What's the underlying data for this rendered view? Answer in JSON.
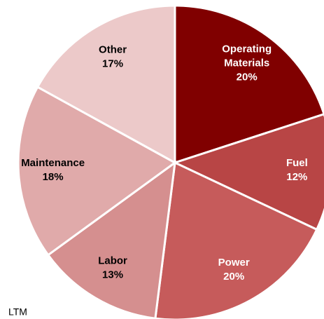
{
  "chart_data": {
    "type": "pie",
    "categories": [
      "Operating Materials",
      "Fuel",
      "Power",
      "Labor",
      "Maintenance",
      "Other"
    ],
    "values": [
      20,
      12,
      20,
      13,
      18,
      17
    ],
    "value_labels": [
      "20%",
      "12%",
      "20%",
      "13%",
      "18%",
      "17%"
    ],
    "colors": [
      "#800000",
      "#b84545",
      "#c65b5b",
      "#d58f8f",
      "#e0aaaa",
      "#ecc9c9"
    ],
    "label_colors": [
      "#ffffff",
      "#ffffff",
      "#ffffff",
      "#000000",
      "#000000",
      "#000000"
    ],
    "footnote": "LTM"
  }
}
